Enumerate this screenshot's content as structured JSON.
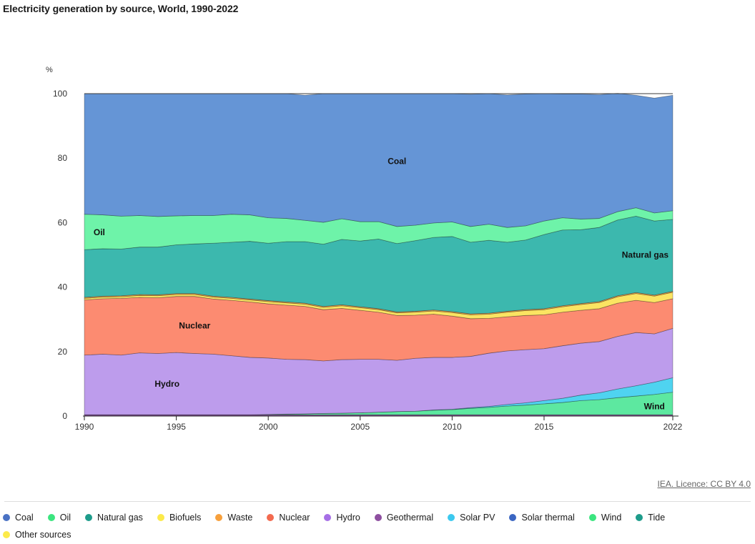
{
  "page": {
    "title": "Electricity generation by source, World, 1990-2022",
    "credit": "IEA. Licence: CC BY 4.0"
  },
  "chart_data": {
    "type": "area",
    "stacked": true,
    "normalized": true,
    "title": "Electricity generation by source, World, 1990-2022",
    "ylabel": "%",
    "xlabel": "",
    "ylim": [
      0,
      100
    ],
    "xlim": [
      1990,
      2022
    ],
    "yticks": [
      0,
      20,
      40,
      60,
      80,
      100
    ],
    "xticks": [
      1990,
      1995,
      2000,
      2005,
      2010,
      2015,
      2022
    ],
    "grid": "horizontal",
    "legend_position": "bottom",
    "x": [
      1990,
      1991,
      1992,
      1993,
      1994,
      1995,
      1996,
      1997,
      1998,
      1999,
      2000,
      2001,
      2002,
      2003,
      2004,
      2005,
      2006,
      2007,
      2008,
      2009,
      2010,
      2011,
      2012,
      2013,
      2014,
      2015,
      2016,
      2017,
      2018,
      2019,
      2020,
      2021,
      2022
    ],
    "series": [
      {
        "name": "Geothermal",
        "color": "#8e4fa0",
        "values": [
          0.4,
          0.4,
          0.4,
          0.4,
          0.4,
          0.4,
          0.4,
          0.4,
          0.4,
          0.4,
          0.4,
          0.4,
          0.4,
          0.4,
          0.4,
          0.4,
          0.4,
          0.4,
          0.4,
          0.4,
          0.4,
          0.4,
          0.4,
          0.4,
          0.4,
          0.4,
          0.4,
          0.4,
          0.4,
          0.4,
          0.4,
          0.4,
          0.4
        ]
      },
      {
        "name": "Wind",
        "color": "#5de8a0",
        "values": [
          0,
          0,
          0,
          0,
          0,
          0,
          0,
          0,
          0,
          0,
          0.1,
          0.2,
          0.3,
          0.4,
          0.5,
          0.6,
          0.8,
          1.0,
          1.1,
          1.4,
          1.6,
          2.0,
          2.3,
          2.7,
          3.0,
          3.4,
          3.8,
          4.4,
          4.7,
          5.3,
          5.8,
          6.3,
          7.0
        ]
      },
      {
        "name": "Solar PV",
        "color": "#4fd3f0",
        "values": [
          0,
          0,
          0,
          0,
          0,
          0,
          0,
          0,
          0,
          0,
          0,
          0,
          0,
          0,
          0,
          0,
          0,
          0,
          0,
          0.1,
          0.1,
          0.2,
          0.3,
          0.5,
          0.7,
          1.0,
          1.3,
          1.7,
          2.1,
          2.7,
          3.2,
          3.8,
          4.5
        ]
      },
      {
        "name": "Hydro",
        "color": "#bd9cec",
        "values": [
          18.5,
          18.8,
          18.5,
          19.2,
          19.0,
          19.3,
          19.0,
          18.8,
          18.3,
          17.8,
          17.5,
          17.0,
          16.8,
          16.3,
          16.6,
          16.6,
          16.4,
          15.9,
          16.4,
          16.3,
          16.1,
          15.9,
          16.5,
          16.6,
          16.5,
          16.1,
          16.3,
          16.1,
          15.9,
          16.3,
          16.5,
          15.0,
          15.3
        ]
      },
      {
        "name": "Nuclear",
        "color": "#fc8b71",
        "values": [
          17.1,
          17.2,
          17.6,
          17.2,
          17.3,
          17.4,
          17.7,
          17.1,
          17.2,
          17.2,
          16.8,
          16.8,
          16.5,
          15.9,
          15.9,
          15.2,
          14.6,
          13.9,
          13.4,
          13.4,
          12.8,
          11.7,
          10.8,
          10.6,
          10.6,
          10.5,
          10.4,
          10.2,
          10.2,
          10.3,
          10.0,
          9.7,
          9.2
        ]
      },
      {
        "name": "Biofuels",
        "color": "#fbe462",
        "values": [
          0.5,
          0.5,
          0.5,
          0.6,
          0.6,
          0.6,
          0.6,
          0.6,
          0.6,
          0.6,
          0.7,
          0.7,
          0.7,
          0.7,
          0.8,
          0.8,
          0.8,
          0.8,
          0.9,
          1.0,
          1.1,
          1.2,
          1.3,
          1.4,
          1.5,
          1.6,
          1.7,
          1.8,
          1.9,
          2.0,
          2.1,
          2.0,
          2.0
        ]
      },
      {
        "name": "Waste",
        "color": "#f8a84c",
        "values": [
          0.3,
          0.3,
          0.3,
          0.3,
          0.3,
          0.3,
          0.3,
          0.3,
          0.3,
          0.3,
          0.3,
          0.3,
          0.3,
          0.3,
          0.3,
          0.3,
          0.3,
          0.3,
          0.3,
          0.3,
          0.3,
          0.3,
          0.3,
          0.3,
          0.3,
          0.3,
          0.3,
          0.3,
          0.3,
          0.3,
          0.3,
          0.3,
          0.3
        ]
      },
      {
        "name": "Natural gas",
        "color": "#3cb8ae",
        "values": [
          14.8,
          14.7,
          14.5,
          14.7,
          14.8,
          15.1,
          15.4,
          16.4,
          17.1,
          17.9,
          17.8,
          18.7,
          19.1,
          19.3,
          20.3,
          20.4,
          21.6,
          21.2,
          21.9,
          22.5,
          23.3,
          22.2,
          22.6,
          21.4,
          21.6,
          23.0,
          23.5,
          22.9,
          23.0,
          23.5,
          23.7,
          23.0,
          22.3
        ]
      },
      {
        "name": "Oil",
        "color": "#6ef3a9",
        "values": [
          11.0,
          10.5,
          10.2,
          9.8,
          9.5,
          9.0,
          8.8,
          8.6,
          8.7,
          8.2,
          7.9,
          7.2,
          6.6,
          6.8,
          6.4,
          6.0,
          5.4,
          5.3,
          4.8,
          4.5,
          4.5,
          4.9,
          5.0,
          4.6,
          4.4,
          4.2,
          3.8,
          3.3,
          2.8,
          2.6,
          2.6,
          2.5,
          2.7
        ]
      },
      {
        "name": "Coal",
        "color": "#6595d6",
        "values": [
          37.4,
          37.6,
          38.0,
          37.8,
          38.1,
          37.9,
          37.8,
          37.8,
          37.4,
          37.6,
          38.5,
          38.7,
          38.8,
          39.9,
          38.8,
          39.7,
          39.7,
          41.2,
          40.8,
          40.1,
          39.8,
          41.0,
          40.5,
          41.1,
          40.9,
          39.5,
          38.4,
          38.8,
          38.4,
          36.7,
          34.9,
          35.6,
          35.8
        ]
      }
    ],
    "annotations": [
      {
        "text": "Coal",
        "x": 2007,
        "y": 79
      },
      {
        "text": "Oil",
        "x": 1990.5,
        "y": 57
      },
      {
        "text": "Natural gas",
        "x": 2020.5,
        "y": 50
      },
      {
        "text": "Nuclear",
        "x": 1996,
        "y": 28
      },
      {
        "text": "Hydro",
        "x": 1994.5,
        "y": 10
      },
      {
        "text": "Wind",
        "x": 2021,
        "y": 3
      }
    ]
  },
  "legend": [
    {
      "label": "Coal",
      "color": "#4a72c4"
    },
    {
      "label": "Oil",
      "color": "#3be57f"
    },
    {
      "label": "Natural gas",
      "color": "#1e9c8b"
    },
    {
      "label": "Biofuels",
      "color": "#fcea4a"
    },
    {
      "label": "Waste",
      "color": "#f7a03c"
    },
    {
      "label": "Nuclear",
      "color": "#f36a4f"
    },
    {
      "label": "Hydro",
      "color": "#a66fe6"
    },
    {
      "label": "Geothermal",
      "color": "#8e4fa0"
    },
    {
      "label": "Solar PV",
      "color": "#3cc9ef"
    },
    {
      "label": "Solar thermal",
      "color": "#3b66c2"
    },
    {
      "label": "Wind",
      "color": "#3be57f"
    },
    {
      "label": "Tide",
      "color": "#1e9c8b"
    },
    {
      "label": "Other sources",
      "color": "#fcea4a"
    }
  ]
}
